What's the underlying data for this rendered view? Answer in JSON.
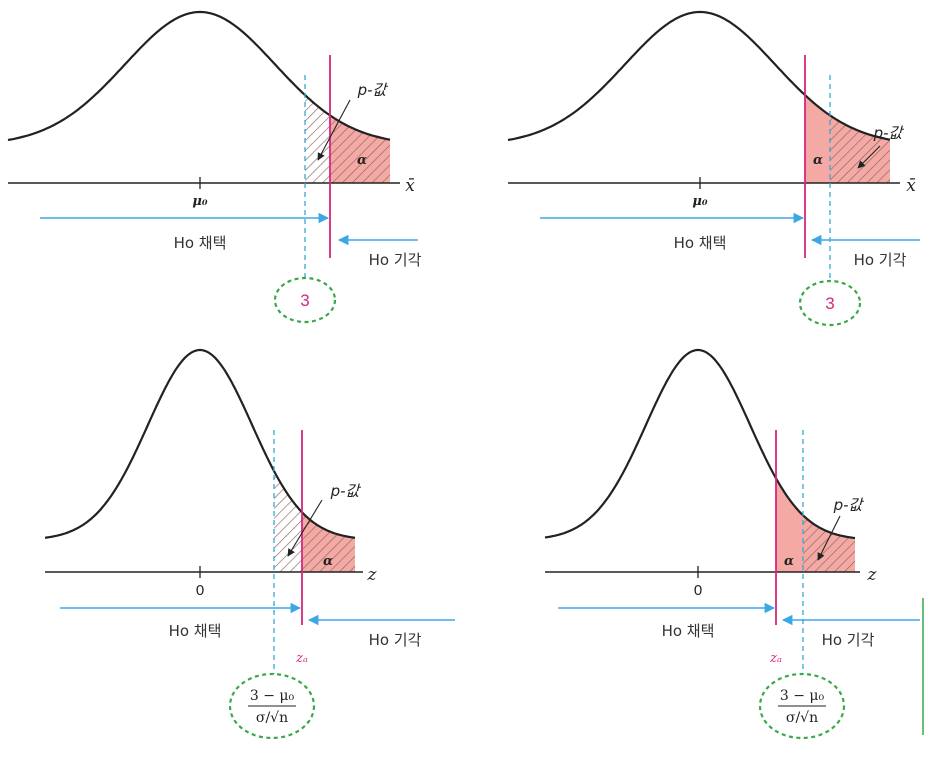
{
  "colors": {
    "curve": "#222222",
    "critical_line": "#d6287e",
    "dashed_line": "#35a7d8",
    "alpha_fill": "#f4a9a4",
    "hatch": "#9a6a66",
    "arrow": "#3ba8e6",
    "ellipse": "#3aa84a"
  },
  "panels": [
    {
      "axis_label": "x̄",
      "center_label": "μ₀",
      "pvalue_label": "p-값",
      "alpha_label": "α",
      "accept_label": "Ho 채택",
      "reject_label": "Ho 기각",
      "observed_label": "3",
      "critical_label": ""
    },
    {
      "axis_label": "x̄",
      "center_label": "μ₀",
      "pvalue_label": "p-값",
      "alpha_label": "α",
      "accept_label": "Ho 채택",
      "reject_label": "Ho 기각",
      "observed_label": "3",
      "critical_label": ""
    },
    {
      "axis_label": "z",
      "center_label": "0",
      "pvalue_label": "p-값",
      "alpha_label": "α",
      "accept_label": "Ho 채택",
      "reject_label": "Ho 기각",
      "observed_numerator": "3 − μ₀",
      "observed_denominator": "σ/√n",
      "critical_label": "zₐ"
    },
    {
      "axis_label": "z",
      "center_label": "0",
      "pvalue_label": "p-값",
      "alpha_label": "α",
      "accept_label": "Ho 채택",
      "reject_label": "Ho 기각",
      "observed_numerator": "3 − μ₀",
      "observed_denominator": "σ/√n",
      "critical_label": "zₐ"
    }
  ]
}
